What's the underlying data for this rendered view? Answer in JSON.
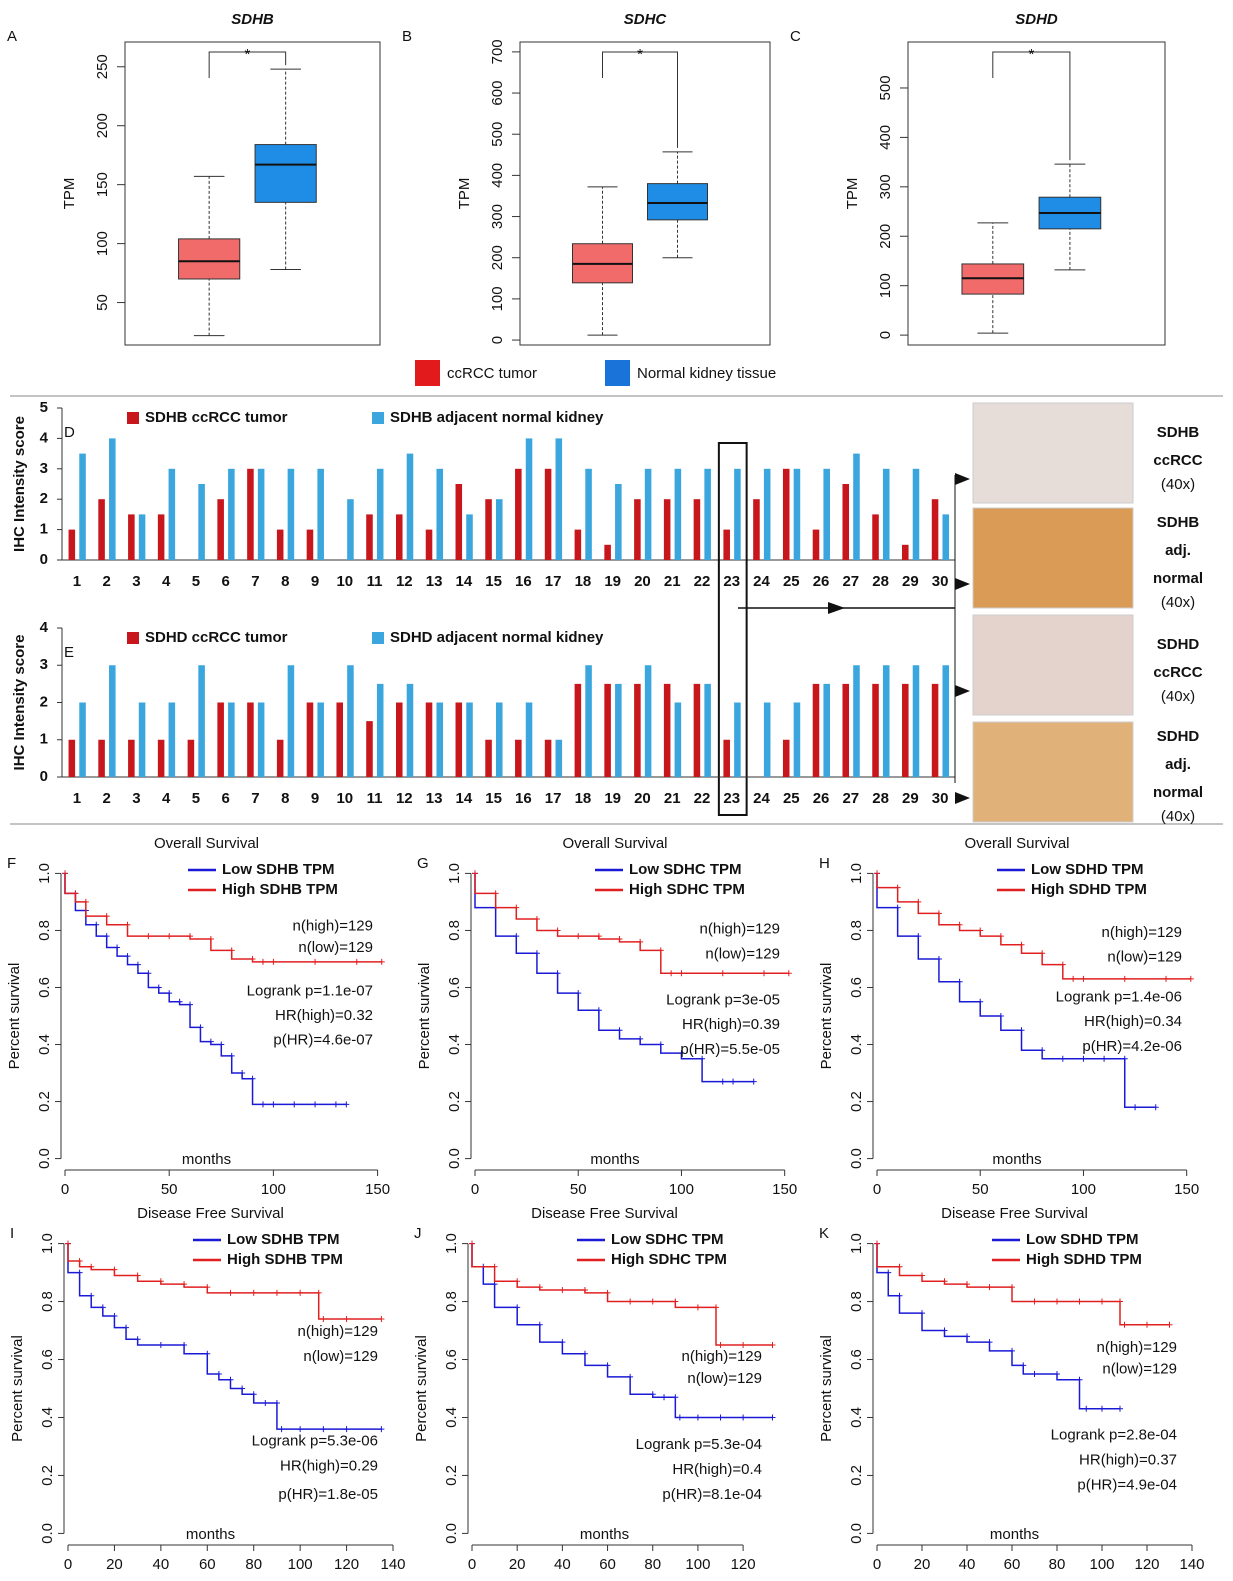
{
  "chart_data": [
    {
      "type": "box",
      "label": "A",
      "title": "SDHB",
      "ylabel": "TPM",
      "ylim": [
        14,
        271
      ],
      "yticks": [
        50,
        100,
        150,
        200,
        250
      ],
      "significance": "*",
      "series": [
        {
          "name": "ccRCC tumor",
          "color": "#f26b6b",
          "whislo": 22,
          "q1": 70,
          "med": 85,
          "q3": 104,
          "whishi": 157
        },
        {
          "name": "Normal kidney tissue",
          "color": "#1f8de6",
          "whislo": 78,
          "q1": 135,
          "med": 167,
          "q3": 184,
          "whishi": 248
        }
      ]
    },
    {
      "type": "box",
      "label": "B",
      "title": "SDHC",
      "ylabel": "TPM",
      "ylim": [
        -12,
        724
      ],
      "yticks": [
        0,
        100,
        200,
        300,
        400,
        500,
        600,
        700
      ],
      "significance": "*",
      "series": [
        {
          "name": "ccRCC tumor",
          "color": "#f26b6b",
          "whislo": 12,
          "q1": 139,
          "med": 185,
          "q3": 234,
          "whishi": 372
        },
        {
          "name": "Normal kidney tissue",
          "color": "#1f8de6",
          "whislo": 200,
          "q1": 292,
          "med": 333,
          "q3": 380,
          "whishi": 457
        }
      ]
    },
    {
      "type": "box",
      "label": "C",
      "title": "SDHD",
      "ylabel": "TPM",
      "ylim": [
        -20,
        593
      ],
      "yticks": [
        0,
        100,
        200,
        300,
        400,
        500
      ],
      "significance": "*",
      "series": [
        {
          "name": "ccRCC tumor",
          "color": "#f26b6b",
          "whislo": 4,
          "q1": 83,
          "med": 115,
          "q3": 144,
          "whishi": 227
        },
        {
          "name": "Normal kidney tissue",
          "color": "#1f8de6",
          "whislo": 132,
          "q1": 215,
          "med": 247,
          "q3": 279,
          "whishi": 346
        }
      ]
    },
    {
      "type": "bar",
      "label": "D",
      "ylabel": "IHC Intensity score",
      "ylim": [
        0,
        5
      ],
      "yticks": [
        0,
        1,
        2,
        3,
        4,
        5
      ],
      "highlight": 23,
      "categories": [
        1,
        2,
        3,
        4,
        5,
        6,
        7,
        8,
        9,
        10,
        11,
        12,
        13,
        14,
        15,
        16,
        17,
        18,
        19,
        20,
        21,
        22,
        23,
        24,
        25,
        26,
        27,
        28,
        29,
        30
      ],
      "series": [
        {
          "name": "SDHB ccRCC tumor",
          "color": "#c8161d",
          "values": [
            1,
            2,
            1.5,
            1.5,
            0,
            2,
            3,
            1,
            1,
            0,
            1.5,
            1.5,
            1,
            2.5,
            2,
            3,
            3,
            1,
            0.5,
            2,
            2,
            2,
            1,
            2,
            3,
            1,
            2.5,
            1.5,
            0.5,
            2
          ]
        },
        {
          "name": "SDHB adjacent normal kidney",
          "color": "#3aa6dd",
          "values": [
            3.5,
            4,
            1.5,
            3,
            2.5,
            3,
            3,
            3,
            3,
            2,
            3,
            3.5,
            3,
            1.5,
            2,
            4,
            4,
            3,
            2.5,
            3,
            3,
            3,
            3,
            3,
            3,
            3,
            3.5,
            3,
            3,
            1.5
          ]
        }
      ]
    },
    {
      "type": "bar",
      "label": "E",
      "ylabel": "IHC Intensity score",
      "ylim": [
        0,
        4
      ],
      "yticks": [
        0,
        1,
        2,
        3,
        4
      ],
      "categories": [
        1,
        2,
        3,
        4,
        5,
        6,
        7,
        8,
        9,
        10,
        11,
        12,
        13,
        14,
        15,
        16,
        17,
        18,
        19,
        20,
        21,
        22,
        23,
        24,
        25,
        26,
        27,
        28,
        29,
        30
      ],
      "series": [
        {
          "name": "SDHD ccRCC tumor",
          "color": "#c8161d",
          "values": [
            1,
            1,
            1,
            1,
            1,
            2,
            2,
            1,
            2,
            2,
            1.5,
            2,
            2,
            2,
            1,
            1,
            1,
            2.5,
            2.5,
            2.5,
            2.5,
            2.5,
            1,
            0,
            1,
            2.5,
            2.5,
            2.5,
            2.5,
            2.5
          ]
        },
        {
          "name": "SDHD adjacent normal kidney",
          "color": "#3aa6dd",
          "values": [
            2,
            3,
            2,
            2,
            3,
            2,
            2,
            3,
            2,
            3,
            2.5,
            2.5,
            2,
            2,
            2,
            2,
            1,
            3,
            2.5,
            3,
            2,
            2.5,
            2,
            2,
            2,
            2.5,
            3,
            3,
            3,
            3
          ]
        }
      ]
    },
    {
      "type": "km",
      "label": "F",
      "title": "Overall Survival",
      "xlabel": "months",
      "ylabel": "Percent survival",
      "xlim": [
        0,
        155
      ],
      "xticks": [
        0,
        50,
        100,
        150
      ],
      "ylim": [
        -0.04,
        1.04
      ],
      "yticks": [
        {
          "value": 0,
          "label": "0.0"
        },
        0.2,
        0.4,
        0.6,
        0.8,
        {
          "value": 1,
          "label": "1.0"
        }
      ],
      "annotations": [
        "n(high)=129",
        "n(low)=129",
        "Logrank p=1.1e-07",
        "HR(high)=0.32",
        "p(HR)=4.6e-07"
      ],
      "series": [
        {
          "name": "Low SDHB TPM",
          "color": "#1a1ad6",
          "x": [
            0,
            5,
            10,
            15,
            20,
            25,
            30,
            35,
            40,
            45,
            50,
            55,
            60,
            65,
            70,
            75,
            80,
            85,
            90,
            95,
            100,
            110,
            120,
            130,
            135
          ],
          "values": [
            1,
            0.93,
            0.87,
            0.82,
            0.78,
            0.74,
            0.71,
            0.68,
            0.65,
            0.6,
            0.58,
            0.55,
            0.54,
            0.46,
            0.41,
            0.4,
            0.36,
            0.3,
            0.28,
            0.19,
            0.19,
            0.19,
            0.19,
            0.19,
            0.19
          ]
        },
        {
          "name": "High SDHB TPM",
          "color": "#e02020",
          "x": [
            0,
            5,
            10,
            20,
            30,
            40,
            50,
            60,
            70,
            80,
            90,
            95,
            100,
            120,
            140,
            152
          ],
          "values": [
            1,
            0.93,
            0.9,
            0.85,
            0.82,
            0.78,
            0.78,
            0.78,
            0.77,
            0.73,
            0.7,
            0.69,
            0.69,
            0.69,
            0.69,
            0.69
          ]
        }
      ]
    },
    {
      "type": "km",
      "label": "G",
      "title": "Overall Survival",
      "xlabel": "months",
      "ylabel": "Percent survival",
      "xlim": [
        0,
        155
      ],
      "xticks": [
        0,
        50,
        100,
        150
      ],
      "ylim": [
        -0.04,
        1.04
      ],
      "yticks": [
        {
          "value": 0,
          "label": "0.0"
        },
        0.2,
        0.4,
        0.6,
        0.8,
        {
          "value": 1,
          "label": "1.0"
        }
      ],
      "annotations": [
        "n(high)=129",
        "n(low)=129",
        "Logrank p=3e-05",
        "HR(high)=0.39",
        "p(HR)=5.5e-05"
      ],
      "series": [
        {
          "name": "Low SDHC TPM",
          "color": "#1a1ad6",
          "x": [
            0,
            10,
            20,
            30,
            40,
            50,
            60,
            70,
            80,
            90,
            100,
            110,
            120,
            125,
            135
          ],
          "values": [
            1,
            0.88,
            0.78,
            0.72,
            0.65,
            0.58,
            0.52,
            0.45,
            0.42,
            0.4,
            0.37,
            0.35,
            0.27,
            0.27,
            0.27
          ]
        },
        {
          "name": "High SDHC TPM",
          "color": "#e02020",
          "x": [
            0,
            10,
            20,
            30,
            40,
            50,
            60,
            70,
            80,
            90,
            95,
            100,
            120,
            140,
            152
          ],
          "values": [
            1,
            0.93,
            0.88,
            0.84,
            0.8,
            0.78,
            0.78,
            0.77,
            0.76,
            0.73,
            0.65,
            0.65,
            0.65,
            0.65,
            0.65
          ]
        }
      ]
    },
    {
      "type": "km",
      "label": "H",
      "title": "Overall Survival",
      "xlabel": "months",
      "ylabel": "Percent survival",
      "xlim": [
        0,
        155
      ],
      "xticks": [
        0,
        50,
        100,
        150
      ],
      "ylim": [
        -0.04,
        1.04
      ],
      "yticks": [
        {
          "value": 0,
          "label": "0.0"
        },
        0.2,
        0.4,
        0.6,
        0.8,
        {
          "value": 1,
          "label": "1.0"
        }
      ],
      "annotations": [
        "n(high)=129",
        "n(low)=129",
        "Logrank p=1.4e-06",
        "HR(high)=0.34",
        "p(HR)=4.2e-06"
      ],
      "series": [
        {
          "name": "Low SDHD TPM",
          "color": "#1a1ad6",
          "x": [
            0,
            10,
            20,
            30,
            40,
            50,
            60,
            70,
            80,
            90,
            100,
            110,
            120,
            125,
            135
          ],
          "values": [
            1,
            0.88,
            0.78,
            0.7,
            0.62,
            0.55,
            0.5,
            0.45,
            0.38,
            0.35,
            0.35,
            0.35,
            0.35,
            0.18,
            0.18
          ]
        },
        {
          "name": "High SDHD TPM",
          "color": "#e02020",
          "x": [
            0,
            10,
            20,
            30,
            40,
            50,
            60,
            70,
            80,
            90,
            95,
            100,
            120,
            140,
            152
          ],
          "values": [
            1,
            0.95,
            0.9,
            0.86,
            0.82,
            0.8,
            0.78,
            0.75,
            0.72,
            0.68,
            0.63,
            0.63,
            0.63,
            0.63,
            0.63
          ]
        }
      ]
    },
    {
      "type": "km",
      "label": "I",
      "title": "Disease Free Survival",
      "xlabel": "months",
      "ylabel": "Percent survival",
      "xlim": [
        0,
        140
      ],
      "xticks": [
        0,
        20,
        40,
        60,
        80,
        100,
        120,
        140
      ],
      "ylim": [
        -0.04,
        1.04
      ],
      "yticks": [
        {
          "value": 0,
          "label": "0.0"
        },
        0.2,
        0.4,
        0.6,
        0.8,
        {
          "value": 1,
          "label": "1.0"
        }
      ],
      "annotations": [
        "n(high)=129",
        "n(low)=129",
        "Logrank p=5.3e-06",
        "HR(high)=0.29",
        "p(HR)=1.8e-05"
      ],
      "series": [
        {
          "name": "Low SDHB TPM",
          "color": "#1a1ad6",
          "x": [
            0,
            5,
            10,
            15,
            20,
            25,
            30,
            40,
            50,
            60,
            65,
            70,
            75,
            80,
            85,
            90,
            92,
            100,
            110,
            120,
            135
          ],
          "values": [
            1,
            0.9,
            0.82,
            0.78,
            0.75,
            0.71,
            0.67,
            0.65,
            0.65,
            0.62,
            0.55,
            0.53,
            0.5,
            0.48,
            0.45,
            0.45,
            0.36,
            0.36,
            0.36,
            0.36,
            0.36
          ]
        },
        {
          "name": "High SDHB TPM",
          "color": "#e02020",
          "x": [
            0,
            5,
            10,
            20,
            30,
            40,
            50,
            60,
            70,
            80,
            90,
            100,
            108,
            110,
            120,
            135
          ],
          "values": [
            1,
            0.94,
            0.92,
            0.91,
            0.89,
            0.87,
            0.86,
            0.85,
            0.83,
            0.83,
            0.83,
            0.83,
            0.83,
            0.74,
            0.74,
            0.74
          ]
        }
      ]
    },
    {
      "type": "km",
      "label": "J",
      "title": "Disease Free Survival",
      "xlabel": "months",
      "ylabel": "Percent survival",
      "xlim": [
        0,
        135
      ],
      "xticks": [
        0,
        20,
        40,
        60,
        80,
        100,
        120
      ],
      "ylim": [
        -0.04,
        1.04
      ],
      "yticks": [
        {
          "value": 0,
          "label": "0.0"
        },
        0.2,
        0.4,
        0.6,
        0.8,
        {
          "value": 1,
          "label": "1.0"
        }
      ],
      "annotations": [
        "n(high)=129",
        "n(low)=129",
        "Logrank p=5.3e-04",
        "HR(high)=0.4",
        "p(HR)=8.1e-04"
      ],
      "series": [
        {
          "name": "Low SDHC TPM",
          "color": "#1a1ad6",
          "x": [
            0,
            5,
            10,
            20,
            30,
            40,
            50,
            60,
            70,
            80,
            85,
            90,
            92,
            100,
            110,
            120,
            133
          ],
          "values": [
            1,
            0.92,
            0.86,
            0.78,
            0.72,
            0.66,
            0.62,
            0.58,
            0.54,
            0.48,
            0.47,
            0.47,
            0.4,
            0.4,
            0.4,
            0.4,
            0.4
          ]
        },
        {
          "name": "High SDHC TPM",
          "color": "#e02020",
          "x": [
            0,
            10,
            20,
            30,
            40,
            50,
            60,
            70,
            80,
            90,
            100,
            108,
            110,
            120,
            133
          ],
          "values": [
            1,
            0.92,
            0.87,
            0.85,
            0.84,
            0.84,
            0.83,
            0.8,
            0.8,
            0.8,
            0.78,
            0.78,
            0.65,
            0.65,
            0.65
          ]
        }
      ]
    },
    {
      "type": "km",
      "label": "K",
      "title": "Disease Free Survival",
      "xlabel": "months",
      "ylabel": "Percent survival",
      "xlim": [
        0,
        140
      ],
      "xticks": [
        0,
        20,
        40,
        60,
        80,
        100,
        120,
        140
      ],
      "ylim": [
        -0.04,
        1.04
      ],
      "yticks": [
        {
          "value": 0,
          "label": "0.0"
        },
        0.2,
        0.4,
        0.6,
        0.8,
        {
          "value": 1,
          "label": "1.0"
        }
      ],
      "annotations": [
        "n(high)=129",
        "n(low)=129",
        "Logrank p=2.8e-04",
        "HR(high)=0.37",
        "p(HR)=4.9e-04"
      ],
      "series": [
        {
          "name": "Low SDHD TPM",
          "color": "#1a1ad6",
          "x": [
            0,
            5,
            10,
            20,
            30,
            40,
            50,
            60,
            65,
            70,
            80,
            90,
            93,
            100,
            108
          ],
          "values": [
            1,
            0.9,
            0.82,
            0.76,
            0.7,
            0.68,
            0.66,
            0.63,
            0.58,
            0.55,
            0.55,
            0.53,
            0.43,
            0.43,
            0.43
          ]
        },
        {
          "name": "High SDHD TPM",
          "color": "#e02020",
          "x": [
            0,
            10,
            20,
            30,
            40,
            50,
            60,
            70,
            80,
            90,
            100,
            108,
            110,
            120,
            130
          ],
          "values": [
            1,
            0.92,
            0.89,
            0.87,
            0.86,
            0.85,
            0.85,
            0.8,
            0.8,
            0.8,
            0.8,
            0.8,
            0.72,
            0.72,
            0.72
          ]
        }
      ]
    }
  ],
  "box_legend": [
    {
      "name": "ccRCC tumor",
      "color": "#e31a1c"
    },
    {
      "name": "Normal kidney tissue",
      "color": "#1a73d9"
    }
  ],
  "ihc_images": [
    {
      "lines": [
        "SDHB",
        "ccRCC"
      ],
      "magnification": "(40x)",
      "color": "#e6dcd8"
    },
    {
      "lines": [
        "SDHB",
        "adj.",
        "normal"
      ],
      "magnification": "(40x)",
      "color": "#d99b55"
    },
    {
      "lines": [
        "SDHD",
        "ccRCC"
      ],
      "magnification": "(40x)",
      "color": "#e4d3cc"
    },
    {
      "lines": [
        "SDHD",
        "adj.",
        "normal"
      ],
      "magnification": "(40x)",
      "color": "#e0b27a"
    }
  ]
}
